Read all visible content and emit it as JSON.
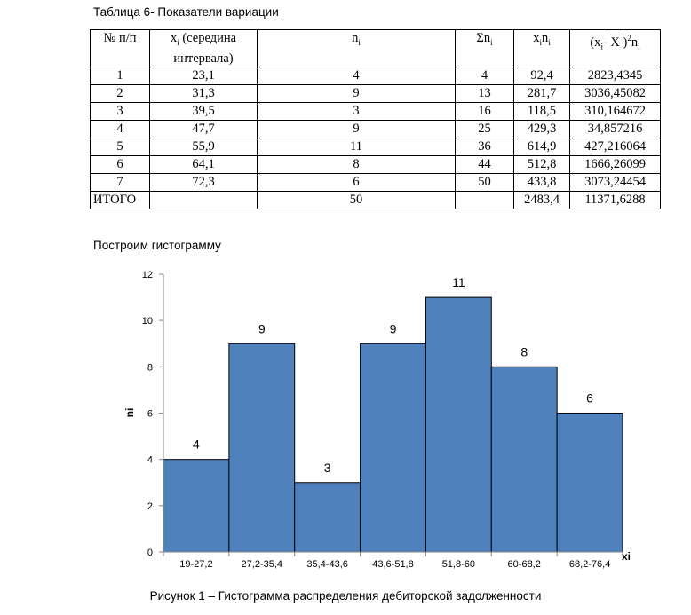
{
  "table_caption": "Таблица 6- Показатели вариации",
  "table": {
    "headers": {
      "num": "№ п/п",
      "x_main": "x",
      "x_sub": "i",
      "x_rest": " (середина интервала)",
      "n_main": "n",
      "n_sub": "i",
      "sum_main": "Σn",
      "sum_sub": "i",
      "xn_x": "x",
      "xn_xi": "i",
      "xn_n": "n",
      "xn_ni": "i",
      "dev_open": "(x",
      "dev_xi": "i",
      "dev_mid": "- ",
      "dev_xbar": "X",
      "dev_close": " )",
      "dev_sup": "2",
      "dev_n": "n",
      "dev_ni": "i"
    },
    "rows": [
      {
        "num": "1",
        "x": "23,1",
        "n": "4",
        "sum": "4",
        "xn": "92,4",
        "dev": "2823,4345"
      },
      {
        "num": "2",
        "x": "31,3",
        "n": "9",
        "sum": "13",
        "xn": "281,7",
        "dev": "3036,45082"
      },
      {
        "num": "3",
        "x": "39,5",
        "n": "3",
        "sum": "16",
        "xn": "118,5",
        "dev": "310,164672"
      },
      {
        "num": "4",
        "x": "47,7",
        "n": "9",
        "sum": "25",
        "xn": "429,3",
        "dev": "34,857216"
      },
      {
        "num": "5",
        "x": "55,9",
        "n": "11",
        "sum": "36",
        "xn": "614,9",
        "dev": "427,216064"
      },
      {
        "num": "6",
        "x": "64,1",
        "n": "8",
        "sum": "44",
        "xn": "512,8",
        "dev": "1666,26099"
      },
      {
        "num": "7",
        "x": "72,3",
        "n": "6",
        "sum": "50",
        "xn": "433,8",
        "dev": "3073,24454"
      }
    ],
    "total": {
      "label": "ИТОГО",
      "n": "50",
      "xn": "2483,4",
      "dev": "11371,6288"
    }
  },
  "intro_text": "Построим гистограмму",
  "figure_caption": "Рисунок 1 – Гистограмма распределения  дебиторской задолженности",
  "chart_data": {
    "type": "bar",
    "categories": [
      "19-27,2",
      "27,2-35,4",
      "35,4-43,6",
      "43,6-51,8",
      "51,8-60",
      "60-68,2",
      "68,2-76,4"
    ],
    "values": [
      4,
      9,
      3,
      9,
      11,
      8,
      6
    ],
    "data_labels": [
      "4",
      "9",
      "3",
      "9",
      "11",
      "8",
      "6"
    ],
    "xlabel": "xi",
    "ylabel": "ni",
    "ylim": [
      0,
      12
    ],
    "yticks": [
      "0",
      "2",
      "4",
      "6",
      "8",
      "10",
      "12"
    ],
    "bar_color": "#4f81bd",
    "bar_edge_color": "#000000",
    "bar_gap": 0,
    "grid": false,
    "legend": "none"
  }
}
